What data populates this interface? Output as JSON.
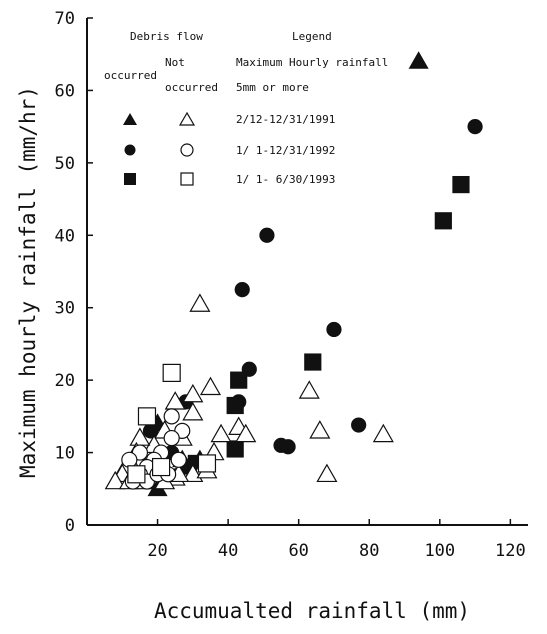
{
  "chart_data": {
    "type": "scatter",
    "title": "",
    "xlabel": "Accumualted rainfall (mm)",
    "ylabel": "Maximum hourly rainfall (mm/hr)",
    "xlim": [
      0,
      125
    ],
    "ylim": [
      0,
      70
    ],
    "xticks": [
      "20",
      "40",
      "60",
      "80",
      "100",
      "120"
    ],
    "yticks": [
      "0",
      "10",
      "20",
      "30",
      "40",
      "50",
      "60",
      "70"
    ],
    "grid": false,
    "legend": {
      "header_group": "Debris flow",
      "header_legend": "Legend",
      "col_occurred": "occurred",
      "col_not_occurred_1": "Not",
      "col_not_occurred_2": "occurred",
      "col_max_1": "Maximum Hourly rainfall",
      "col_max_2": "5mm or more",
      "rows": [
        "2/12-12/31/1991",
        "1/ 1-12/31/1992",
        "1/ 1- 6/30/1993"
      ]
    },
    "series": [
      {
        "marker": "triangle",
        "filled": true,
        "points": [
          [
            94,
            64
          ],
          [
            20,
            14
          ],
          [
            20,
            5
          ],
          [
            27,
            9
          ],
          [
            32,
            9
          ]
        ]
      },
      {
        "marker": "circle",
        "filled": true,
        "points": [
          [
            110,
            55
          ],
          [
            51,
            40
          ],
          [
            44,
            32.5
          ],
          [
            70,
            27
          ],
          [
            46,
            21.5
          ],
          [
            43,
            17
          ],
          [
            28,
            17
          ],
          [
            24,
            10
          ],
          [
            28,
            8
          ],
          [
            55,
            11
          ],
          [
            57,
            10.8
          ],
          [
            77,
            13.8
          ],
          [
            18,
            13
          ]
        ]
      },
      {
        "marker": "square",
        "filled": true,
        "points": [
          [
            106,
            47
          ],
          [
            101,
            42
          ],
          [
            64,
            22.5
          ],
          [
            43,
            20
          ],
          [
            42,
            16.5
          ],
          [
            42,
            10.5
          ],
          [
            31,
            8.5
          ]
        ]
      },
      {
        "marker": "triangle",
        "filled": false,
        "points": [
          [
            32,
            30.5
          ],
          [
            35,
            19
          ],
          [
            30,
            18
          ],
          [
            25,
            17
          ],
          [
            30,
            15.5
          ],
          [
            63,
            18.5
          ],
          [
            66,
            13
          ],
          [
            68,
            7
          ],
          [
            84,
            12.5
          ],
          [
            43,
            13.5
          ],
          [
            45,
            12.5
          ],
          [
            38,
            12.5
          ],
          [
            36,
            10
          ],
          [
            33,
            8
          ],
          [
            27,
            12
          ],
          [
            22,
            13
          ],
          [
            19,
            11
          ],
          [
            15,
            12
          ],
          [
            14,
            10
          ],
          [
            13,
            8
          ],
          [
            11,
            8
          ],
          [
            10,
            7
          ],
          [
            8,
            6
          ],
          [
            12,
            6
          ],
          [
            16,
            6
          ],
          [
            19,
            7
          ],
          [
            22,
            8
          ],
          [
            25,
            6.5
          ],
          [
            30,
            7
          ],
          [
            34,
            7.5
          ],
          [
            22,
            6
          ],
          [
            26,
            7
          ]
        ]
      },
      {
        "marker": "circle",
        "filled": false,
        "points": [
          [
            24,
            15
          ],
          [
            27,
            13
          ],
          [
            24,
            12
          ],
          [
            21,
            10
          ],
          [
            19,
            9
          ],
          [
            17,
            8
          ],
          [
            15,
            7
          ],
          [
            13,
            6
          ],
          [
            17,
            6
          ],
          [
            20,
            7
          ],
          [
            23,
            7
          ],
          [
            26,
            9
          ],
          [
            15,
            10
          ],
          [
            12,
            9
          ]
        ]
      },
      {
        "marker": "square",
        "filled": false,
        "points": [
          [
            24,
            21
          ],
          [
            17,
            15
          ],
          [
            34,
            8.5
          ],
          [
            21,
            8
          ],
          [
            14,
            7
          ]
        ]
      }
    ]
  }
}
